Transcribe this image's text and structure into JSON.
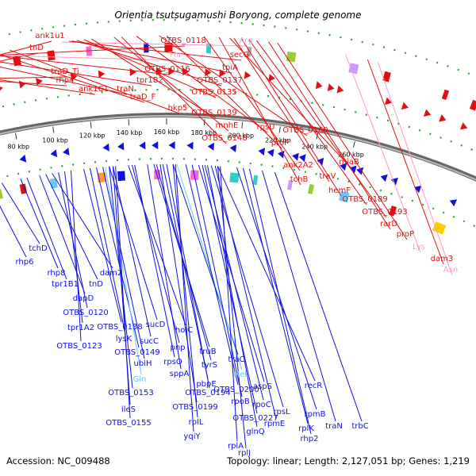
{
  "title": "Orientia tsutsugamushi Boryong, complete genome",
  "accession": "Accession: NC_009488",
  "topology": "Topology: linear; Length: 2,127,051 bp; Genes: 1,219",
  "colors": {
    "fwd_gene": "#e01010",
    "rev_gene": "#1010e0",
    "trna": "#ff99cc",
    "trna_light": "#66ccff",
    "backbone": "#888888",
    "dots": "#22aa22"
  },
  "ticks": [
    "80 kbp",
    "100 kbp",
    "120 kbp",
    "140 kbp",
    "160 kbp",
    "180 kbp",
    "200 kbp",
    "220 kbp",
    "240 kbp",
    "260 kbp"
  ],
  "top_labels": [
    {
      "text": "ank1u1",
      "kind": "gene"
    },
    {
      "text": "tnD",
      "kind": "gene"
    },
    {
      "text": "traD_Ti",
      "kind": "gene"
    },
    {
      "text": "rhp4",
      "kind": "gene"
    },
    {
      "text": "ank1C1",
      "kind": "gene"
    },
    {
      "text": "traN",
      "kind": "gene"
    },
    {
      "text": "tpr1B2",
      "kind": "gene"
    },
    {
      "text": "OTBS_0118",
      "kind": "gene"
    },
    {
      "text": "Thr",
      "kind": "trna"
    },
    {
      "text": "OTBS_0116",
      "kind": "gene"
    },
    {
      "text": "traD_F",
      "kind": "gene"
    },
    {
      "text": "hkp5",
      "kind": "gene"
    },
    {
      "text": "Arg",
      "kind": "trna"
    },
    {
      "text": "secG",
      "kind": "gene"
    },
    {
      "text": "tpiA",
      "kind": "gene"
    },
    {
      "text": "OTBS_0137",
      "kind": "gene"
    },
    {
      "text": "OTBS_0135",
      "kind": "gene"
    },
    {
      "text": "OTBS_0139",
      "kind": "gene"
    },
    {
      "text": "mnhE",
      "kind": "gene"
    },
    {
      "text": "OTBS_0148",
      "kind": "gene"
    },
    {
      "text": "rpsU",
      "kind": "gene"
    },
    {
      "text": "OTBS_0160",
      "kind": "gene"
    },
    {
      "text": "proP",
      "kind": "gene"
    },
    {
      "text": "ank2A2",
      "kind": "gene"
    },
    {
      "text": "tchB",
      "kind": "gene"
    },
    {
      "text": "miaB",
      "kind": "gene"
    },
    {
      "text": "traV",
      "kind": "gene"
    },
    {
      "text": "hemF",
      "kind": "gene"
    },
    {
      "text": "OTBS_0189",
      "kind": "gene"
    },
    {
      "text": "OTBS_0193",
      "kind": "gene"
    },
    {
      "text": "rarD",
      "kind": "gene"
    },
    {
      "text": "proP",
      "kind": "gene"
    },
    {
      "text": "Lys",
      "kind": "trna"
    },
    {
      "text": "dam3",
      "kind": "gene"
    },
    {
      "text": "Asn",
      "kind": "trna"
    }
  ],
  "bottom_labels": [
    {
      "text": "tchD",
      "kind": "gene"
    },
    {
      "text": "rhp6",
      "kind": "gene"
    },
    {
      "text": "rhp8",
      "kind": "gene"
    },
    {
      "text": "tpr1B1",
      "kind": "gene"
    },
    {
      "text": "tnD",
      "kind": "gene"
    },
    {
      "text": "dam2",
      "kind": "gene"
    },
    {
      "text": "dapD",
      "kind": "gene"
    },
    {
      "text": "OTBS_0120",
      "kind": "gene"
    },
    {
      "text": "tpr1A2",
      "kind": "gene"
    },
    {
      "text": "OTBS_0123",
      "kind": "gene"
    },
    {
      "text": "OTBS_0138",
      "kind": "gene"
    },
    {
      "text": "lysK",
      "kind": "gene"
    },
    {
      "text": "sucD",
      "kind": "gene"
    },
    {
      "text": "sucC",
      "kind": "gene"
    },
    {
      "text": "OTBS_0149",
      "kind": "gene"
    },
    {
      "text": "ubiH",
      "kind": "gene"
    },
    {
      "text": "Gln",
      "kind": "trna_light"
    },
    {
      "text": "OTBS_0153",
      "kind": "gene"
    },
    {
      "text": "ileS",
      "kind": "gene"
    },
    {
      "text": "OTBS_0155",
      "kind": "gene"
    },
    {
      "text": "holC",
      "kind": "gene"
    },
    {
      "text": "pnp",
      "kind": "gene"
    },
    {
      "text": "rpsO",
      "kind": "gene"
    },
    {
      "text": "truB",
      "kind": "gene"
    },
    {
      "text": "tyrS",
      "kind": "gene"
    },
    {
      "text": "sppA",
      "kind": "gene"
    },
    {
      "text": "traC",
      "kind": "gene"
    },
    {
      "text": "Met",
      "kind": "trna_light"
    },
    {
      "text": "pbpE",
      "kind": "gene"
    },
    {
      "text": "OTBS_0194",
      "kind": "gene"
    },
    {
      "text": "OTBS_0199",
      "kind": "gene"
    },
    {
      "text": "OTBS_0200",
      "kind": "gene"
    },
    {
      "text": "aspS",
      "kind": "gene"
    },
    {
      "text": "rpoB",
      "kind": "gene"
    },
    {
      "text": "rpoC",
      "kind": "gene"
    },
    {
      "text": "recR",
      "kind": "gene"
    },
    {
      "text": "OTBS_0227",
      "kind": "gene"
    },
    {
      "text": "rpsL",
      "kind": "gene"
    },
    {
      "text": "rplL",
      "kind": "gene"
    },
    {
      "text": "glnQ",
      "kind": "gene"
    },
    {
      "text": "rpmE",
      "kind": "gene"
    },
    {
      "text": "rplJ",
      "kind": "gene"
    },
    {
      "text": "yqiY",
      "kind": "gene"
    },
    {
      "text": "rplA",
      "kind": "gene"
    },
    {
      "text": "rpmB",
      "kind": "gene"
    },
    {
      "text": "rplK",
      "kind": "gene"
    },
    {
      "text": "traN",
      "kind": "gene"
    },
    {
      "text": "trbC",
      "kind": "gene"
    },
    {
      "text": "rhp2",
      "kind": "gene"
    },
    {
      "text": "ank1u2",
      "kind": "gene"
    },
    {
      "text": "traC",
      "kind": "gene"
    }
  ]
}
